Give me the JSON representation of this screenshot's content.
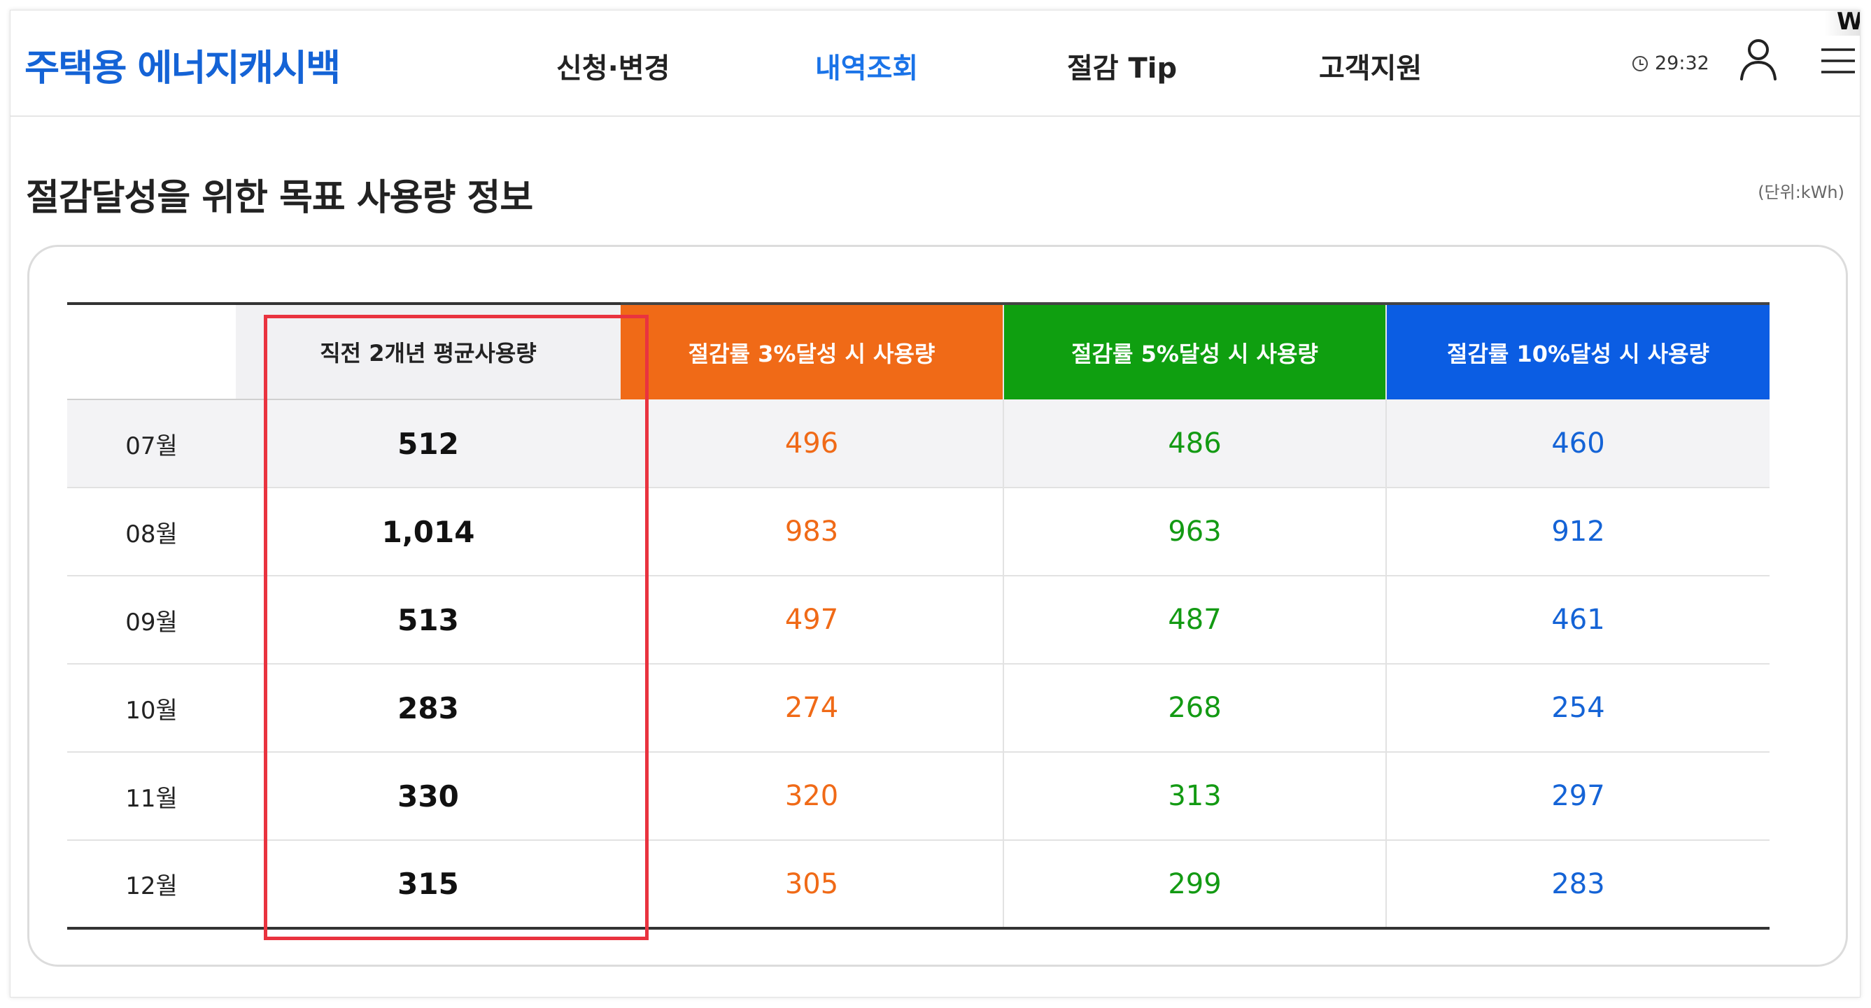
{
  "header": {
    "logo": "주택용 에너지캐시백",
    "nav": [
      {
        "label": "신청·변경",
        "active": false
      },
      {
        "label": "내역조회",
        "active": true
      },
      {
        "label": "절감 Tip",
        "active": false
      },
      {
        "label": "고객지원",
        "active": false
      }
    ],
    "timer": "29:32",
    "corner_glyph": "W"
  },
  "section": {
    "title": "절감달성을 위한 목표 사용량 정보",
    "unit": "(단위:kWh)"
  },
  "table": {
    "columns": [
      "",
      "직전 2개년 평균사용량",
      "절감률 3%달성 시 사용량",
      "절감률 5%달성 시 사용량",
      "절감률 10%달성 시 사용량"
    ],
    "rows": [
      {
        "month": "07월",
        "avg": "512",
        "s3": "496",
        "s5": "486",
        "s10": "460"
      },
      {
        "month": "08월",
        "avg": "1,014",
        "s3": "983",
        "s5": "963",
        "s10": "912"
      },
      {
        "month": "09월",
        "avg": "513",
        "s3": "497",
        "s5": "487",
        "s10": "461"
      },
      {
        "month": "10월",
        "avg": "283",
        "s3": "274",
        "s5": "268",
        "s10": "254"
      },
      {
        "month": "11월",
        "avg": "330",
        "s3": "320",
        "s5": "313",
        "s10": "297"
      },
      {
        "month": "12월",
        "avg": "315",
        "s3": "305",
        "s5": "299",
        "s10": "283"
      }
    ]
  },
  "colors": {
    "brand": "#1463d6",
    "nav_active": "#1a73e8",
    "saving_3": "#f06a17",
    "saving_5": "#0f9f10",
    "saving_10": "#0b5de3",
    "highlight": "#e9333f"
  }
}
